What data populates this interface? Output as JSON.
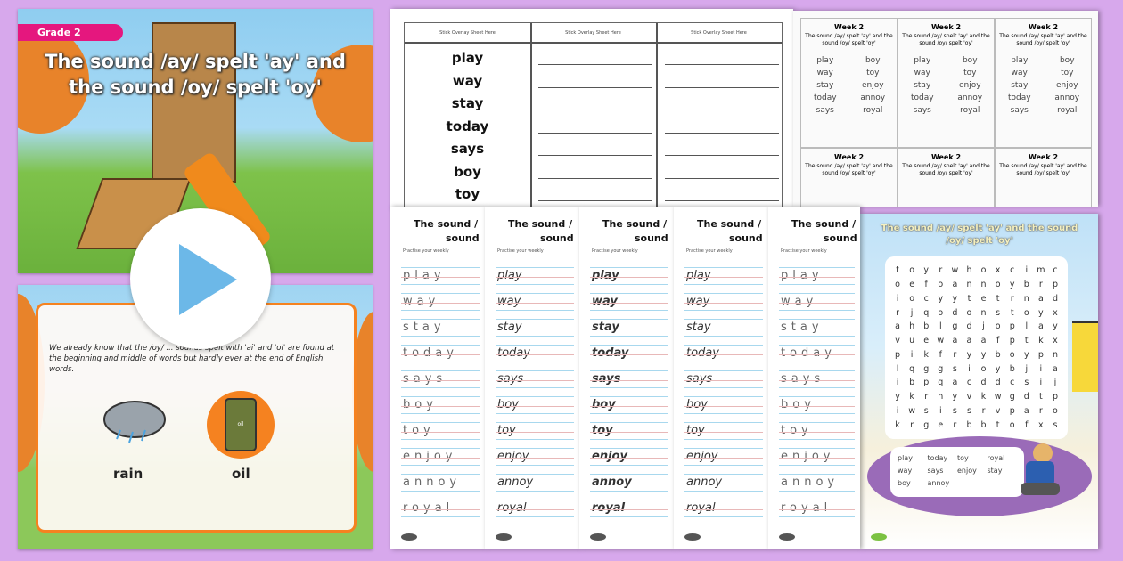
{
  "slide1": {
    "badge": "Grade 2",
    "title_line1": "The sound /ay/ spelt 'ay' and",
    "title_line2": "the sound /oy/ spelt 'oy'"
  },
  "play_button": {
    "icon": "play-icon",
    "color": "#6cb8e8"
  },
  "slide2": {
    "text": "We already know that the /oy/ ... sounds spelt with 'ai' and 'oi' are found at the beginning and middle of words but hardly ever at the end of English words.",
    "label_rain": "rain",
    "label_oil": "oil",
    "barrel_text": "oil"
  },
  "overlay_sheet": {
    "headers": [
      "Stick Overlay Sheet Here",
      "Stick Overlay Sheet Here",
      "Stick Overlay Sheet Here"
    ],
    "words": [
      "play",
      "way",
      "stay",
      "today",
      "says",
      "boy",
      "toy"
    ]
  },
  "flashcards": {
    "cards": [
      {
        "title": "Week 2",
        "subtitle": "The sound /ay/ spelt 'ay' and the sound /oy/ spelt 'oy'",
        "words": [
          "play",
          "boy",
          "way",
          "toy",
          "stay",
          "enjoy",
          "today",
          "annoy",
          "says",
          "royal"
        ]
      },
      {
        "title": "Week 2",
        "subtitle": "The sound /ay/ spelt 'ay' and the sound /oy/ spelt 'oy'",
        "words": [
          "play",
          "boy",
          "way",
          "toy",
          "stay",
          "enjoy",
          "today",
          "annoy",
          "says",
          "royal"
        ]
      },
      {
        "title": "Week 2",
        "subtitle": "The sound /ay/ spelt 'ay' and the sound /oy/ spelt 'oy'",
        "words": [
          "play",
          "boy",
          "way",
          "toy",
          "stay",
          "enjoy",
          "today",
          "annoy",
          "says",
          "royal"
        ]
      },
      {
        "title": "Week 2",
        "subtitle": "The sound /ay/ spelt 'ay' and the sound /oy/ spelt 'oy'"
      },
      {
        "title": "Week 2",
        "subtitle": "The sound /ay/ spelt 'ay' and the sound /oy/ spelt 'oy'"
      },
      {
        "title": "Week 2",
        "subtitle": "The sound /ay/ spelt 'ay' and the sound /oy/ spelt 'oy'"
      }
    ]
  },
  "handwriting": {
    "title_line1": "The sound /",
    "title_line2": "sound",
    "subtitle": "Practise your weekly",
    "styles": [
      "dotted",
      "cursive",
      "cursive-bold",
      "cursive",
      "print-dotted"
    ],
    "words": [
      "play",
      "way",
      "stay",
      "today",
      "says",
      "boy",
      "toy",
      "enjoy",
      "annoy",
      "royal"
    ]
  },
  "wordsearch": {
    "title": "The sound /ay/ spelt 'ay' and the sound /oy/ spelt 'oy'",
    "grid": [
      "toyrwhoxcimc",
      "oefoannoybrp",
      "iocyytetrnad",
      "rjqodonstoyx",
      "ahblgdjoplay",
      "vuewaaafptkx",
      "pikfryyboypn",
      "lqggsioybjia",
      "ibpqacddcsij",
      "ykrnyvkwgdtp",
      "iwsissrvparo",
      "krgerbbtofxs"
    ],
    "words": [
      "play",
      "today",
      "toy",
      "royal",
      "way",
      "says",
      "enjoy",
      "stay",
      "boy",
      "annoy"
    ]
  }
}
